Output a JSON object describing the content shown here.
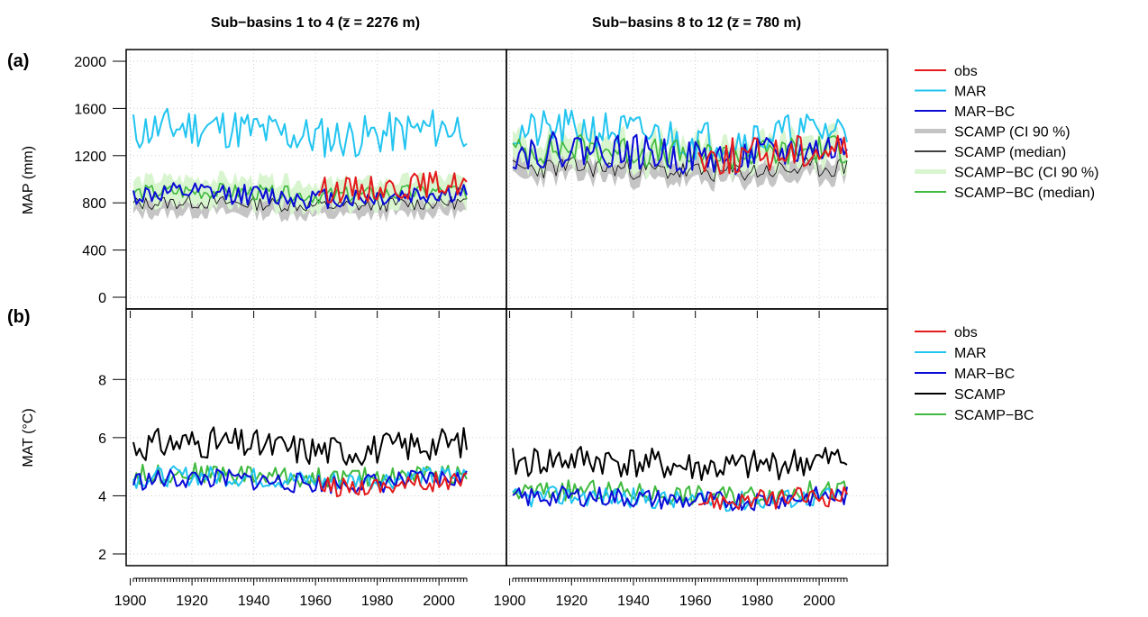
{
  "titles": {
    "left": "Sub−basins 1 to 4 (z̅ = 2276 m)",
    "right": "Sub−basins 8 to 12 (z̅ = 780 m)"
  },
  "panels": {
    "a": {
      "tag": "(a)",
      "ylabel": "MAP (mm)"
    },
    "b": {
      "tag": "(b)",
      "ylabel": "MAT (°C)"
    }
  },
  "legend_a": [
    "obs",
    "MAR",
    "MAR−BC",
    "SCAMP (CI 90 %)",
    "SCAMP (median)",
    "SCAMP−BC (CI 90 %)",
    "SCAMP−BC (median)"
  ],
  "legend_b": [
    "obs",
    "MAR",
    "MAR−BC",
    "SCAMP",
    "SCAMP−BC"
  ],
  "colors": {
    "obs": "#e41a1c",
    "MAR": "#22c4f0",
    "MAR-BC": "#0b0bd6",
    "SCAMP": "#000000",
    "SCAMP_CI": "#c4c4c4",
    "SCAMP-BC": "#3fba3f",
    "SCAMP-BC_CI": "#d8f5cf"
  },
  "chart_data": {
    "type": "line",
    "grid": true,
    "x_ticks": [
      1900,
      1920,
      1940,
      1960,
      1980,
      2000
    ],
    "xlim": [
      1900,
      2010
    ],
    "panels": {
      "MAP": {
        "ylim": [
          0,
          2000
        ],
        "y_ticks": [
          0,
          400,
          800,
          1200,
          1600,
          2000
        ],
        "sub_basins_1_4": {
          "MAR": {
            "base": 1400,
            "amp": 180,
            "seed": 11
          },
          "MAR-BC": {
            "base": 860,
            "amp": 90,
            "seed": 12
          },
          "SCAMP_median": {
            "base": 790,
            "amp": 60,
            "seed": 13
          },
          "SCAMP-BC_median": {
            "base": 880,
            "amp": 70,
            "seed": 14
          },
          "obs": {
            "start": 1961,
            "base": 940,
            "amp": 110,
            "seed": 15
          }
        },
        "sub_basins_8_12": {
          "MAR": {
            "base": 1380,
            "amp": 170,
            "seed": 21
          },
          "MAR-BC": {
            "base": 1220,
            "amp": 150,
            "seed": 22
          },
          "SCAMP_median": {
            "base": 1080,
            "amp": 90,
            "seed": 23
          },
          "SCAMP-BC_median": {
            "base": 1230,
            "amp": 130,
            "seed": 24
          },
          "obs": {
            "start": 1961,
            "base": 1230,
            "amp": 160,
            "seed": 25
          }
        }
      },
      "MAT": {
        "ylim": [
          2,
          9
        ],
        "y_ticks": [
          2,
          4,
          6,
          8
        ],
        "sub_basins_1_4": {
          "SCAMP": {
            "base": 5.7,
            "amp": 0.55,
            "seed": 31
          },
          "MAR": {
            "base": 4.6,
            "amp": 0.35,
            "seed": 32
          },
          "MAR-BC": {
            "base": 4.5,
            "amp": 0.35,
            "seed": 33
          },
          "SCAMP-BC": {
            "base": 4.7,
            "amp": 0.35,
            "seed": 34
          },
          "obs": {
            "start": 1961,
            "base": 4.4,
            "amp": 0.35,
            "seed": 35
          }
        },
        "sub_basins_8_12": {
          "SCAMP": {
            "base": 5.1,
            "amp": 0.55,
            "seed": 41
          },
          "MAR": {
            "base": 3.9,
            "amp": 0.35,
            "seed": 42
          },
          "MAR-BC": {
            "base": 3.9,
            "amp": 0.35,
            "seed": 43
          },
          "SCAMP-BC": {
            "base": 4.1,
            "amp": 0.35,
            "seed": 44
          },
          "obs": {
            "start": 1961,
            "base": 3.9,
            "amp": 0.35,
            "seed": 45
          }
        }
      }
    }
  }
}
